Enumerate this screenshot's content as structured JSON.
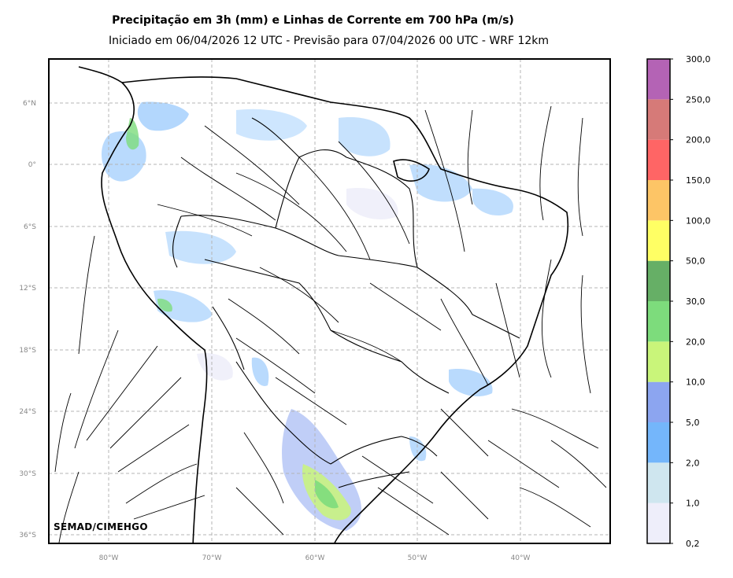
{
  "title": "Precipitação em 3h (mm) e Linhas de Corrente em 700 hPa (m/s)",
  "subtitle": "Iniciado em 06/04/2026 12 UTC - Previsão para 07/04/2026 00 UTC - WRF 12km",
  "credit": "SEMAD/CIMEHGO",
  "axes": {
    "lat_labels": [
      "6°N",
      "0°",
      "6°S",
      "12°S",
      "18°S",
      "24°S",
      "30°S",
      "36°S"
    ],
    "lon_labels": [
      "80°W",
      "70°W",
      "60°W",
      "50°W",
      "40°W"
    ],
    "grid": true,
    "grid_style": "dashed"
  },
  "colorbar": {
    "labels": [
      "0,2",
      "1,0",
      "2,0",
      "5,0",
      "10,0",
      "20,0",
      "30,0",
      "50,0",
      "100,0",
      "150,0",
      "200,0",
      "250,0",
      "300,0"
    ],
    "colors": [
      "#eeeefa",
      "#cfe6ef",
      "#74b6fb",
      "#8ca5f0",
      "#c9f57a",
      "#7ddc7c",
      "#66af66",
      "#ffff64",
      "#fdc566",
      "#ff6565",
      "#d67a78",
      "#b463b5"
    ]
  },
  "colors": {
    "border": "#000000",
    "grid": "#b4b4b4",
    "streamline": "#000000",
    "tick_label": "#888888"
  }
}
